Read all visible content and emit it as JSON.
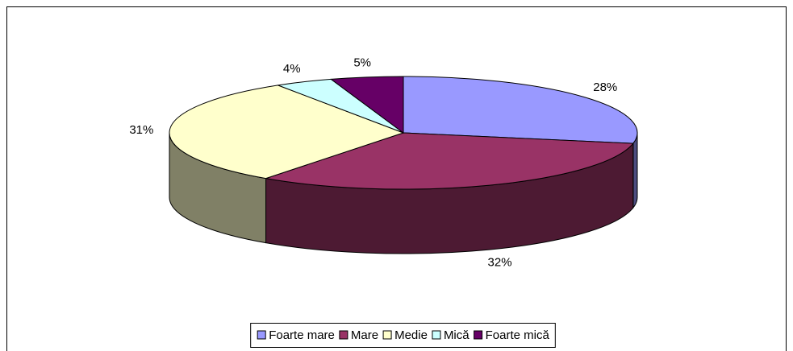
{
  "chart_data": {
    "type": "pie3d",
    "categories": [
      "Foarte mare",
      "Mare",
      "Medie",
      "Mică",
      "Foarte mică"
    ],
    "values": [
      28,
      32,
      31,
      4,
      5
    ],
    "value_labels": [
      "28%",
      "32%",
      "31%",
      "4%",
      "5%"
    ],
    "colors": [
      "#9999ff",
      "#993366",
      "#ffffcc",
      "#ccffff",
      "#660066"
    ],
    "legend": "bottom"
  }
}
